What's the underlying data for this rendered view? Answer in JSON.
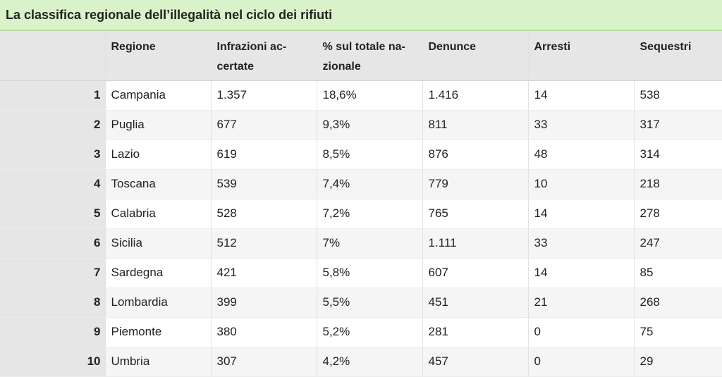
{
  "title": "La classifica regionale dell’illegalità nel ciclo dei rifiuti",
  "columns": [
    "",
    "Regione",
    "Infrazioni ac-\ncertate",
    "% sul totale na-\nzionale",
    "Denunce",
    "Arresti",
    "Sequestri"
  ],
  "rows": [
    [
      "1",
      "Campania",
      "1.357",
      "18,6%",
      "1.416",
      "14",
      "538"
    ],
    [
      "2",
      "Puglia",
      "677",
      "9,3%",
      "811",
      "33",
      "317"
    ],
    [
      "3",
      "Lazio",
      "619",
      "8,5%",
      "876",
      "48",
      "314"
    ],
    [
      "4",
      "Toscana",
      "539",
      "7,4%",
      "779",
      "10",
      "218"
    ],
    [
      "5",
      "Calabria",
      "528",
      "7,2%",
      "765",
      "14",
      "278"
    ],
    [
      "6",
      "Sicilia",
      "512",
      "7%",
      "1.111",
      "33",
      "247"
    ],
    [
      "7",
      "Sardegna",
      "421",
      "5,8%",
      "607",
      "14",
      "85"
    ],
    [
      "8",
      "Lombardia",
      "399",
      "5,5%",
      "451",
      "21",
      "268"
    ],
    [
      "9",
      "Piemonte",
      "380",
      "5,2%",
      "281",
      "0",
      "75"
    ],
    [
      "10",
      "Umbria",
      "307",
      "4,2%",
      "457",
      "0",
      "29"
    ]
  ]
}
